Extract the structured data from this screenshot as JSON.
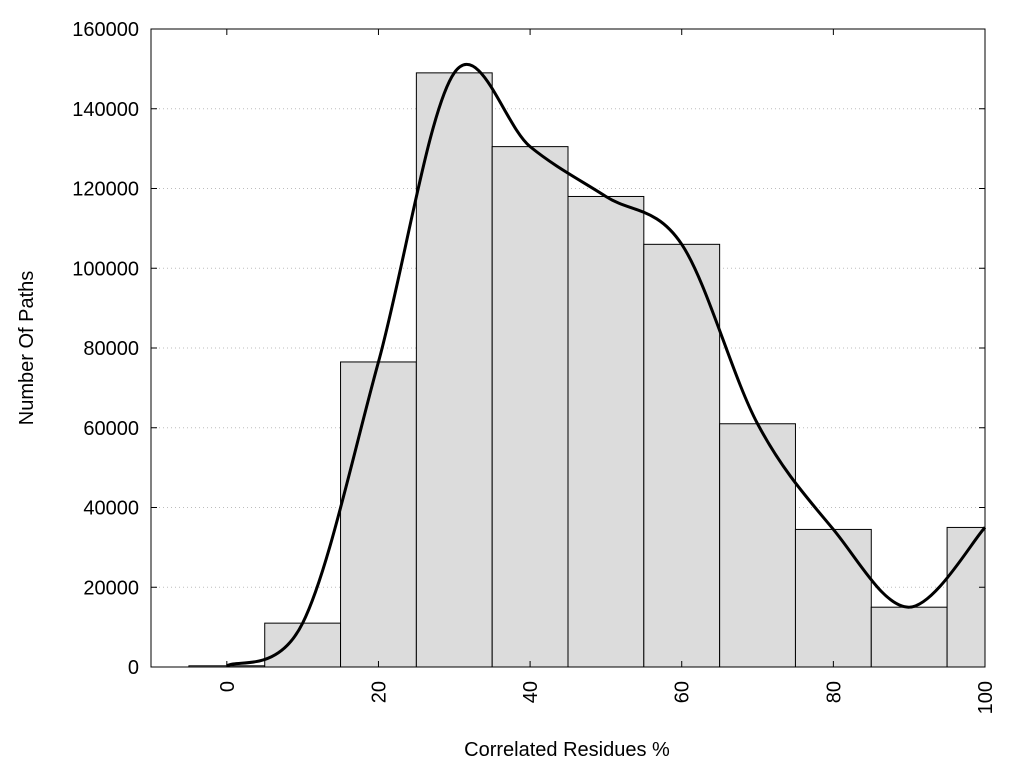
{
  "chart_data": {
    "type": "bar",
    "xlabel": "Correlated Residues %",
    "ylabel": "Number Of Paths",
    "xlim": [
      -10,
      100
    ],
    "ylim": [
      0,
      160000
    ],
    "x_ticks": [
      0,
      20,
      40,
      60,
      80,
      100
    ],
    "y_ticks": [
      0,
      20000,
      40000,
      60000,
      80000,
      100000,
      120000,
      140000,
      160000
    ],
    "grid": "horizontal dotted",
    "bar_width": 10,
    "bars": [
      {
        "x": 0,
        "value": 300
      },
      {
        "x": 10,
        "value": 11000
      },
      {
        "x": 20,
        "value": 76500
      },
      {
        "x": 30,
        "value": 149000
      },
      {
        "x": 40,
        "value": 130500
      },
      {
        "x": 50,
        "value": 118000
      },
      {
        "x": 60,
        "value": 106000
      },
      {
        "x": 70,
        "value": 61000
      },
      {
        "x": 80,
        "value": 34500
      },
      {
        "x": 90,
        "value": 15000
      },
      {
        "x": 100,
        "value": 35000
      }
    ],
    "curve": [
      {
        "x": 0,
        "y": 300
      },
      {
        "x": 10,
        "y": 11000
      },
      {
        "x": 20,
        "y": 76500
      },
      {
        "x": 30,
        "y": 149000
      },
      {
        "x": 40,
        "y": 130500
      },
      {
        "x": 50,
        "y": 118000
      },
      {
        "x": 60,
        "y": 106000
      },
      {
        "x": 70,
        "y": 61000
      },
      {
        "x": 80,
        "y": 34500
      },
      {
        "x": 90,
        "y": 15000
      },
      {
        "x": 100,
        "y": 35000
      }
    ],
    "colors": {
      "bar_fill": "#dcdcdc",
      "bar_stroke": "#000000",
      "curve": "#000000"
    }
  }
}
